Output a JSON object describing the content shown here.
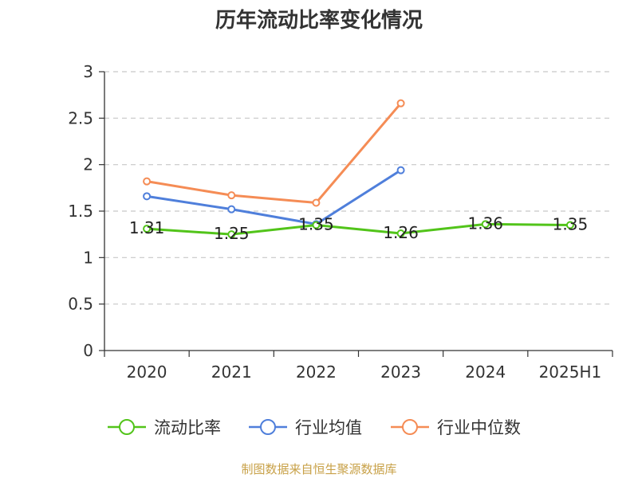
{
  "chart_data": {
    "type": "line",
    "title": "历年流动比率变化情况",
    "categories": [
      "2020",
      "2021",
      "2022",
      "2023",
      "2024",
      "2025H1"
    ],
    "ylim": [
      0,
      3
    ],
    "yticks": [
      "0",
      "0.5",
      "1",
      "1.5",
      "2",
      "2.5",
      "3"
    ],
    "grid": true,
    "legend_position": "bottom",
    "series": [
      {
        "name": "流动比率",
        "color": "#52c41a",
        "values": [
          1.31,
          1.25,
          1.35,
          1.26,
          1.36,
          1.35
        ],
        "labels": [
          "1.31",
          "1.25",
          "1.35",
          "1.26",
          "1.36",
          "1.35"
        ]
      },
      {
        "name": "行业均值",
        "color": "#4f7fdb",
        "values": [
          1.66,
          1.52,
          1.36,
          1.94,
          null,
          null
        ]
      },
      {
        "name": "行业中位数",
        "color": "#f58c55",
        "values": [
          1.82,
          1.67,
          1.59,
          2.66,
          null,
          null
        ]
      }
    ]
  },
  "source": "制图数据来自恒生聚源数据库"
}
